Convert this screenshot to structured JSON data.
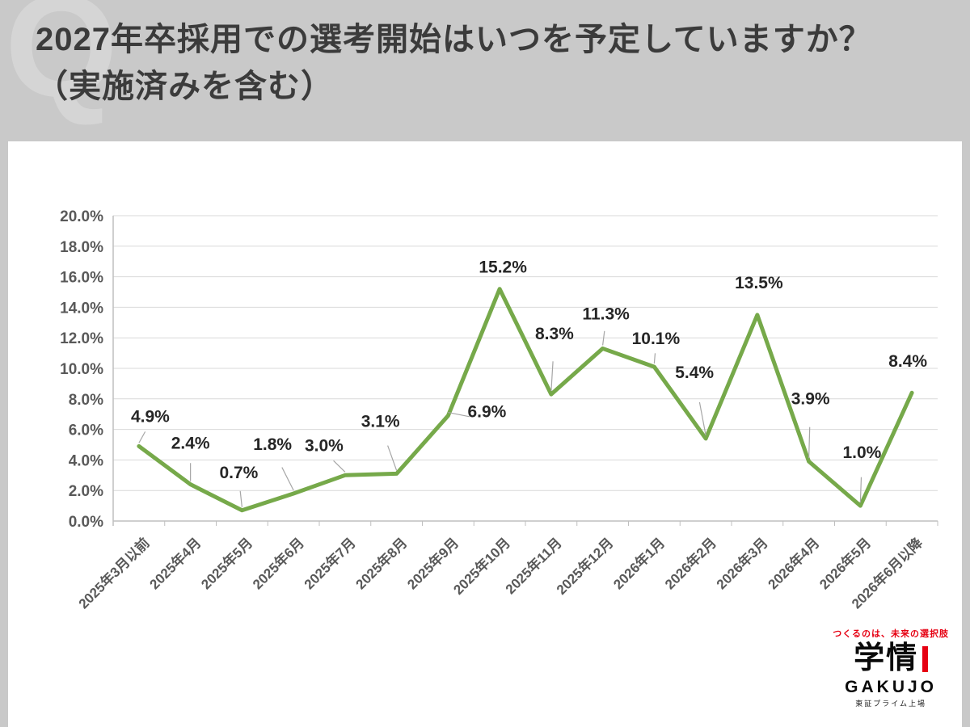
{
  "page": {
    "title": "2027年卒採用での選考開始はいつを予定していますか？（実施済みを含む）",
    "watermark": "Q"
  },
  "chart_data": {
    "type": "line",
    "title": "2027年卒採用での選考開始はいつを予定していますか？（実施済みを含む）",
    "categories": [
      "2025年3月以前",
      "2025年4月",
      "2025年5月",
      "2025年6月",
      "2025年7月",
      "2025年8月",
      "2025年9月",
      "2025年10月",
      "2025年11月",
      "2025年12月",
      "2026年1月",
      "2026年2月",
      "2026年3月",
      "2026年4月",
      "2026年5月",
      "2026年6月以降"
    ],
    "values": [
      4.9,
      2.4,
      0.7,
      1.8,
      3.0,
      3.1,
      6.9,
      15.2,
      8.3,
      11.3,
      10.1,
      5.4,
      13.5,
      3.9,
      1.0,
      8.4
    ],
    "labels": [
      "4.9%",
      "2.4%",
      "0.7%",
      "1.8%",
      "3.0%",
      "3.1%",
      "6.9%",
      "15.2%",
      "8.3%",
      "11.3%",
      "10.1%",
      "5.4%",
      "13.5%",
      "3.9%",
      "1.0%",
      "8.4%"
    ],
    "xlabel": "",
    "ylabel": "",
    "ylim": [
      0,
      20
    ],
    "ytick_step": 2,
    "ytick_labels": [
      "0.0%",
      "2.0%",
      "4.0%",
      "6.0%",
      "8.0%",
      "10.0%",
      "12.0%",
      "14.0%",
      "16.0%",
      "18.0%",
      "20.0%"
    ],
    "grid": true,
    "legend": "none",
    "line_color": "#76a94a",
    "grid_color": "#d9d9d9",
    "axis_color": "#bfbfbf",
    "tick_label_color": "#595959",
    "data_label_color": "#262626",
    "leader_color": "#a6a6a6"
  },
  "logo": {
    "tagline": "つくるのは、未来の選択肢",
    "name_kanji": "学情",
    "name_roman": "GAKUJO",
    "listing": "東証プライム上場"
  }
}
